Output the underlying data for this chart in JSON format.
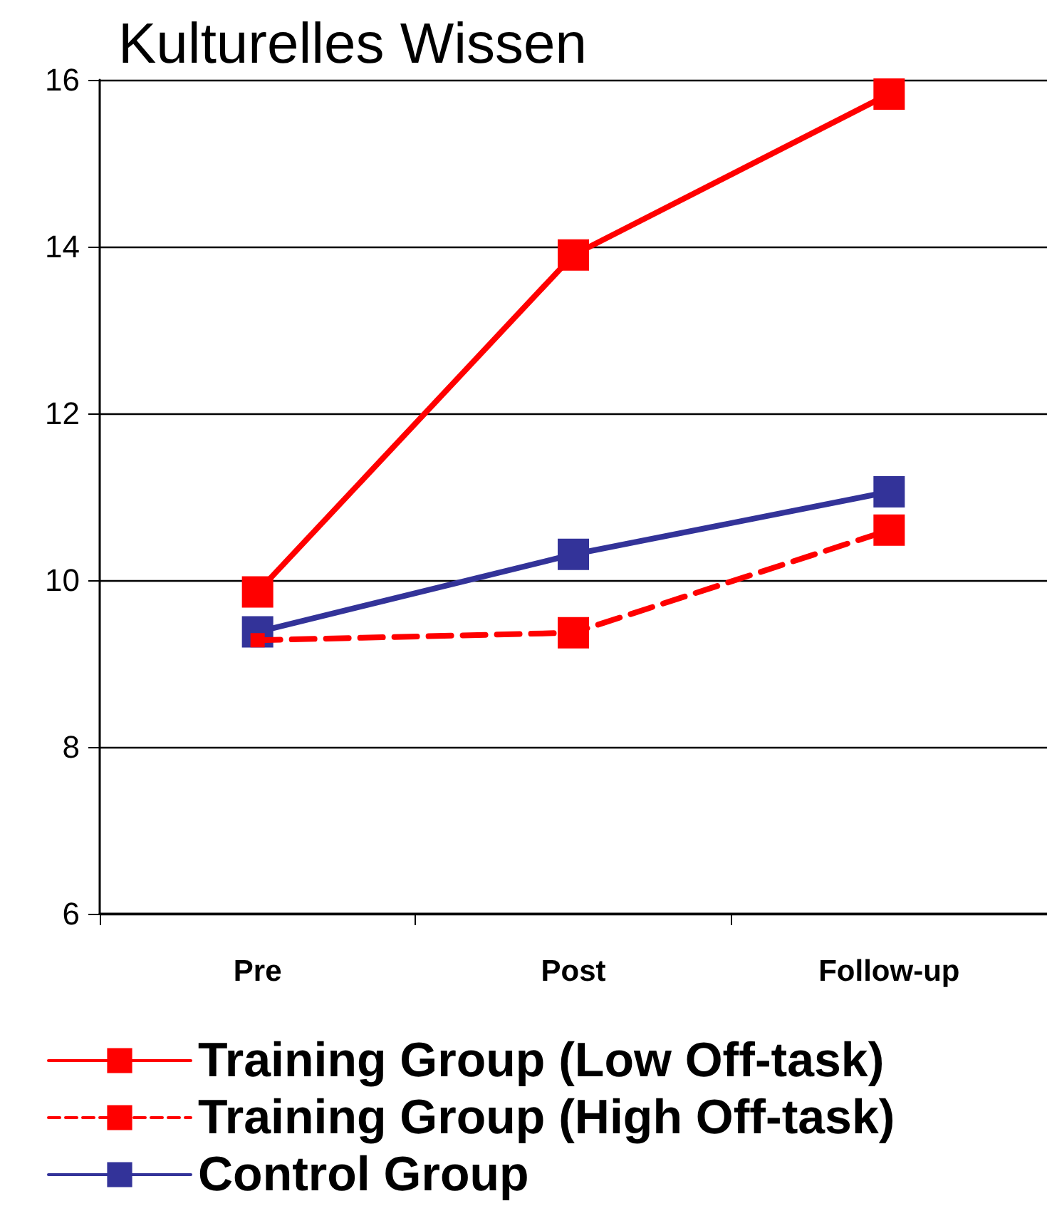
{
  "chart_data": {
    "type": "line",
    "title": "Kulturelles Wissen",
    "categories": [
      "Pre",
      "Post",
      "Follow-up"
    ],
    "series": [
      {
        "name": "Training Group (Low Off-task)",
        "color": "#ff0000",
        "line_style": "solid",
        "values": [
          9.86,
          13.9,
          15.83
        ]
      },
      {
        "name": "Training Group (High Off-task)",
        "color": "#ff0000",
        "line_style": "dashed",
        "values": [
          9.28,
          9.37,
          10.6
        ]
      },
      {
        "name": "Control Group",
        "color": "#333399",
        "line_style": "solid",
        "values": [
          9.38,
          10.31,
          11.06
        ]
      }
    ],
    "ylim": [
      6,
      16
    ],
    "yticks": [
      6,
      8,
      10,
      12,
      14,
      16
    ],
    "grid": "y",
    "legend": "bottom",
    "marker": "square"
  }
}
